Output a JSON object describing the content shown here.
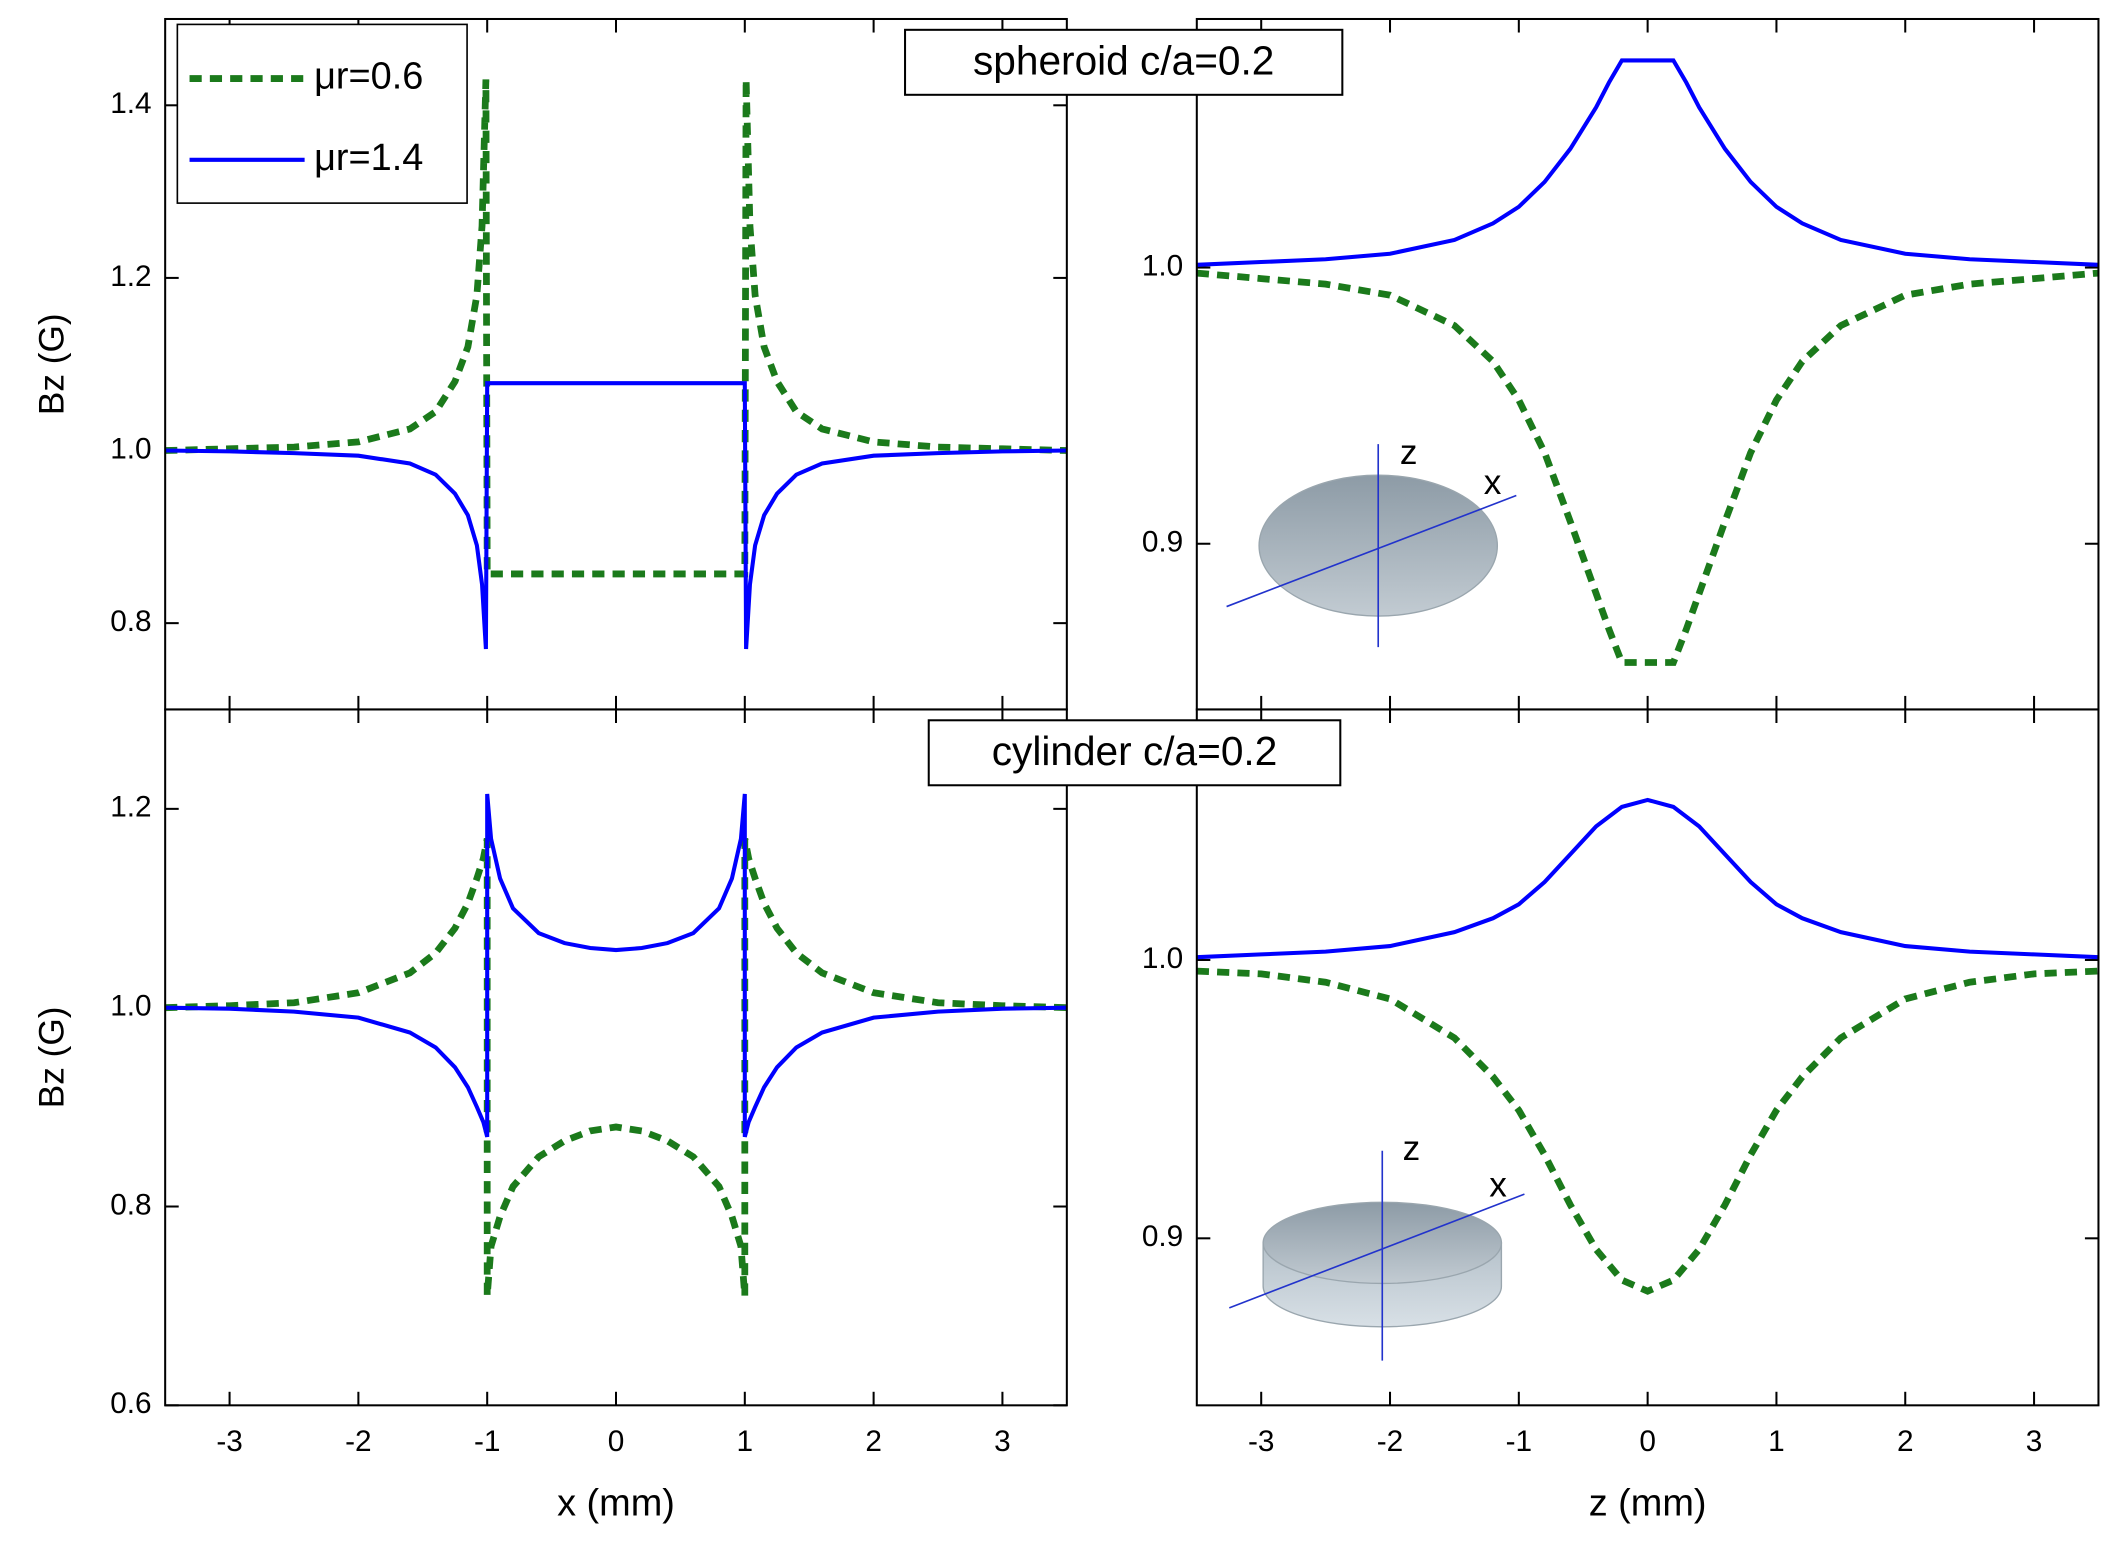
{
  "chart_data": [
    {
      "type": "line",
      "x": [
        -3.5,
        -3,
        -2.5,
        -2,
        -1.6,
        -1.4,
        -1.25,
        -1.15,
        -1.08,
        -1.04,
        -1.01,
        -1,
        1,
        1.01,
        1.04,
        1.08,
        1.15,
        1.25,
        1.4,
        1.6,
        2,
        2.5,
        3,
        3.5
      ],
      "series": [
        {
          "name": "μr=0.6",
          "color": "#1b7a1b",
          "linestyle": "dashed",
          "values": [
            1.0,
            1.002,
            1.004,
            1.01,
            1.025,
            1.045,
            1.08,
            1.12,
            1.18,
            1.26,
            1.43,
            0.857,
            0.857,
            1.43,
            1.26,
            1.18,
            1.12,
            1.08,
            1.045,
            1.025,
            1.01,
            1.004,
            1.002,
            1.0
          ]
        },
        {
          "name": "μr=1.4",
          "color": "#0000ff",
          "linestyle": "solid",
          "values": [
            1.0,
            0.999,
            0.997,
            0.994,
            0.985,
            0.972,
            0.95,
            0.925,
            0.89,
            0.845,
            0.77,
            1.078,
            1.078,
            0.77,
            0.845,
            0.89,
            0.925,
            0.95,
            0.972,
            0.985,
            0.994,
            0.997,
            0.999,
            1.0
          ]
        }
      ],
      "xlim": [
        -3.5,
        3.5
      ],
      "ylim": [
        0.7,
        1.5
      ],
      "xticks": [
        -3,
        -2,
        -1,
        0,
        1,
        2,
        3
      ],
      "yticks": [
        0.8,
        {
          "value": 1.0,
          "label": "1.0"
        },
        1.2,
        1.4
      ],
      "y_label": "Bz (G)",
      "show_xtick_labels": false,
      "legend": "upper left"
    },
    {
      "type": "line",
      "title": "spheroid c/a=0.2",
      "x": [
        -3.5,
        -3,
        -2.5,
        -2,
        -1.5,
        -1.2,
        -1,
        -0.8,
        -0.6,
        -0.4,
        -0.3,
        -0.2,
        0.2,
        0.3,
        0.4,
        0.6,
        0.8,
        1,
        1.2,
        1.5,
        2,
        2.5,
        3,
        3.5
      ],
      "series": [
        {
          "color": "#1b7a1b",
          "linestyle": "dashed",
          "values": [
            0.998,
            0.996,
            0.994,
            0.99,
            0.979,
            0.966,
            0.952,
            0.933,
            0.908,
            0.882,
            0.869,
            0.857,
            0.857,
            0.869,
            0.882,
            0.908,
            0.933,
            0.952,
            0.966,
            0.979,
            0.99,
            0.994,
            0.996,
            0.998
          ]
        },
        {
          "color": "#0000ff",
          "linestyle": "solid",
          "values": [
            1.001,
            1.002,
            1.003,
            1.005,
            1.01,
            1.016,
            1.022,
            1.031,
            1.043,
            1.058,
            1.067,
            1.075,
            1.075,
            1.067,
            1.058,
            1.043,
            1.031,
            1.022,
            1.016,
            1.01,
            1.005,
            1.003,
            1.002,
            1.001
          ]
        }
      ],
      "xlim": [
        -3.5,
        3.5
      ],
      "ylim": [
        0.84,
        1.09
      ],
      "xticks": [
        -3,
        -2,
        -1,
        0,
        1,
        2,
        3
      ],
      "yticks": [
        0.9,
        {
          "value": 1.0,
          "label": "1.0"
        }
      ],
      "annotations": [
        "z",
        "x"
      ],
      "show_xtick_labels": false
    },
    {
      "type": "line",
      "x": [
        -3.5,
        -3,
        -2.5,
        -2,
        -1.6,
        -1.4,
        -1.25,
        -1.15,
        -1.08,
        -1.03,
        -1,
        -1,
        -0.97,
        -0.9,
        -0.8,
        -0.6,
        -0.4,
        -0.2,
        0,
        0.2,
        0.4,
        0.6,
        0.8,
        0.9,
        0.97,
        1,
        1,
        1.03,
        1.08,
        1.15,
        1.25,
        1.4,
        1.6,
        2,
        2.5,
        3,
        3.5
      ],
      "series": [
        {
          "color": "#1b7a1b",
          "linestyle": "dashed",
          "values": [
            1.0,
            1.002,
            1.005,
            1.015,
            1.035,
            1.055,
            1.08,
            1.105,
            1.13,
            1.15,
            1.17,
            0.71,
            0.76,
            0.79,
            0.82,
            0.85,
            0.866,
            0.876,
            0.88,
            0.876,
            0.866,
            0.85,
            0.82,
            0.79,
            0.76,
            0.71,
            1.17,
            1.15,
            1.13,
            1.105,
            1.08,
            1.055,
            1.035,
            1.015,
            1.005,
            1.002,
            1.0
          ]
        },
        {
          "color": "#0000ff",
          "linestyle": "solid",
          "values": [
            1.0,
            0.999,
            0.996,
            0.99,
            0.975,
            0.96,
            0.94,
            0.92,
            0.9,
            0.885,
            0.87,
            1.215,
            1.17,
            1.13,
            1.1,
            1.075,
            1.065,
            1.06,
            1.058,
            1.06,
            1.065,
            1.075,
            1.1,
            1.13,
            1.17,
            1.215,
            0.87,
            0.885,
            0.9,
            0.92,
            0.94,
            0.96,
            0.975,
            0.99,
            0.996,
            0.999,
            1.0
          ]
        }
      ],
      "xlim": [
        -3.5,
        3.5
      ],
      "ylim": [
        0.6,
        1.3
      ],
      "xticks": [
        -3,
        -2,
        -1,
        0,
        1,
        2,
        3
      ],
      "yticks": [
        0.6,
        0.8,
        {
          "value": 1.0,
          "label": "1.0"
        },
        1.2
      ],
      "x_label": "x (mm)",
      "y_label": "Bz (G)",
      "show_xtick_labels": true
    },
    {
      "type": "line",
      "title": "cylinder c/a=0.2",
      "x": [
        -3.5,
        -3,
        -2.5,
        -2,
        -1.5,
        -1.2,
        -1,
        -0.8,
        -0.6,
        -0.4,
        -0.2,
        0,
        0.2,
        0.4,
        0.6,
        0.8,
        1,
        1.2,
        1.5,
        2,
        2.5,
        3,
        3.5
      ],
      "series": [
        {
          "color": "#1b7a1b",
          "linestyle": "dashed",
          "values": [
            0.996,
            0.995,
            0.992,
            0.986,
            0.972,
            0.958,
            0.946,
            0.93,
            0.912,
            0.896,
            0.885,
            0.881,
            0.885,
            0.896,
            0.912,
            0.93,
            0.946,
            0.958,
            0.972,
            0.986,
            0.992,
            0.995,
            0.996
          ]
        },
        {
          "color": "#0000ff",
          "linestyle": "solid",
          "values": [
            1.001,
            1.002,
            1.003,
            1.005,
            1.01,
            1.015,
            1.02,
            1.028,
            1.038,
            1.048,
            1.055,
            1.0575,
            1.055,
            1.048,
            1.038,
            1.028,
            1.02,
            1.015,
            1.01,
            1.005,
            1.003,
            1.002,
            1.001
          ]
        }
      ],
      "xlim": [
        -3.5,
        3.5
      ],
      "ylim": [
        0.84,
        1.09
      ],
      "xticks": [
        -3,
        -2,
        -1,
        0,
        1,
        2,
        3
      ],
      "yticks": [
        0.9,
        {
          "value": 1.0,
          "label": "1.0"
        }
      ],
      "annotations": [
        "z",
        "x"
      ],
      "x_label": "z (mm)",
      "show_xtick_labels": true
    }
  ]
}
